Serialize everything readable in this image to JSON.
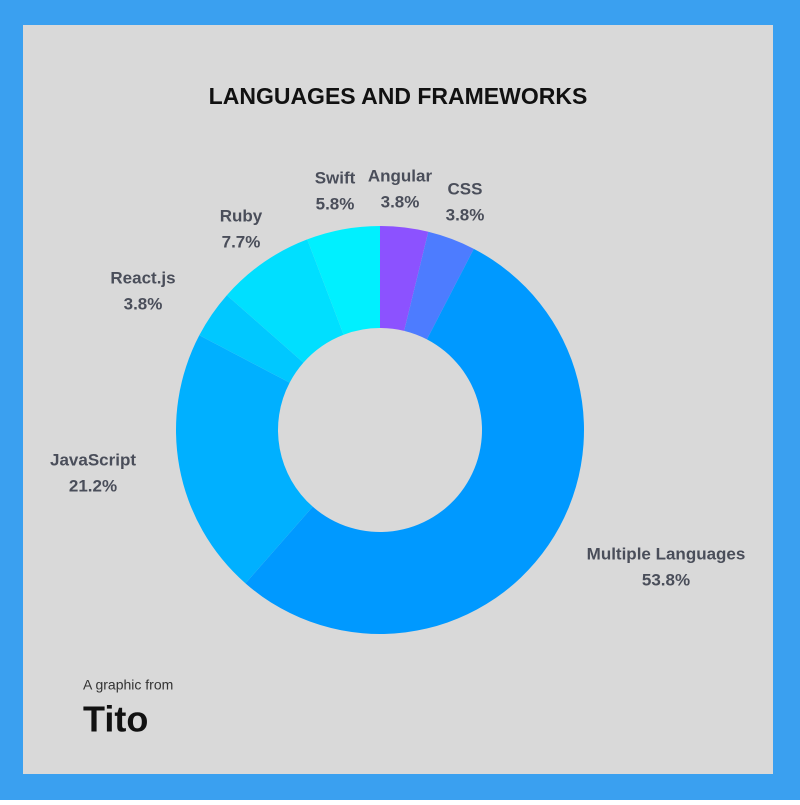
{
  "chart_data": {
    "type": "donut",
    "title": "LANGUAGES AND FRAMEWORKS",
    "categories": [
      "Angular",
      "CSS",
      "Multiple Languages",
      "JavaScript",
      "React.js",
      "Ruby",
      "Swift"
    ],
    "values": [
      3.8,
      3.8,
      53.8,
      21.2,
      3.8,
      7.7,
      5.8
    ],
    "value_labels": [
      "3.8%",
      "3.8%",
      "53.8%",
      "21.2%",
      "3.8%",
      "7.7%",
      "5.8%"
    ],
    "colors": [
      "#8c52ff",
      "#4d7cff",
      "#0099ff",
      "#00b0ff",
      "#00c8ff",
      "#00dfff",
      "#00f0ff"
    ]
  },
  "source": {
    "text": "A graphic from",
    "logo": "Tito"
  }
}
